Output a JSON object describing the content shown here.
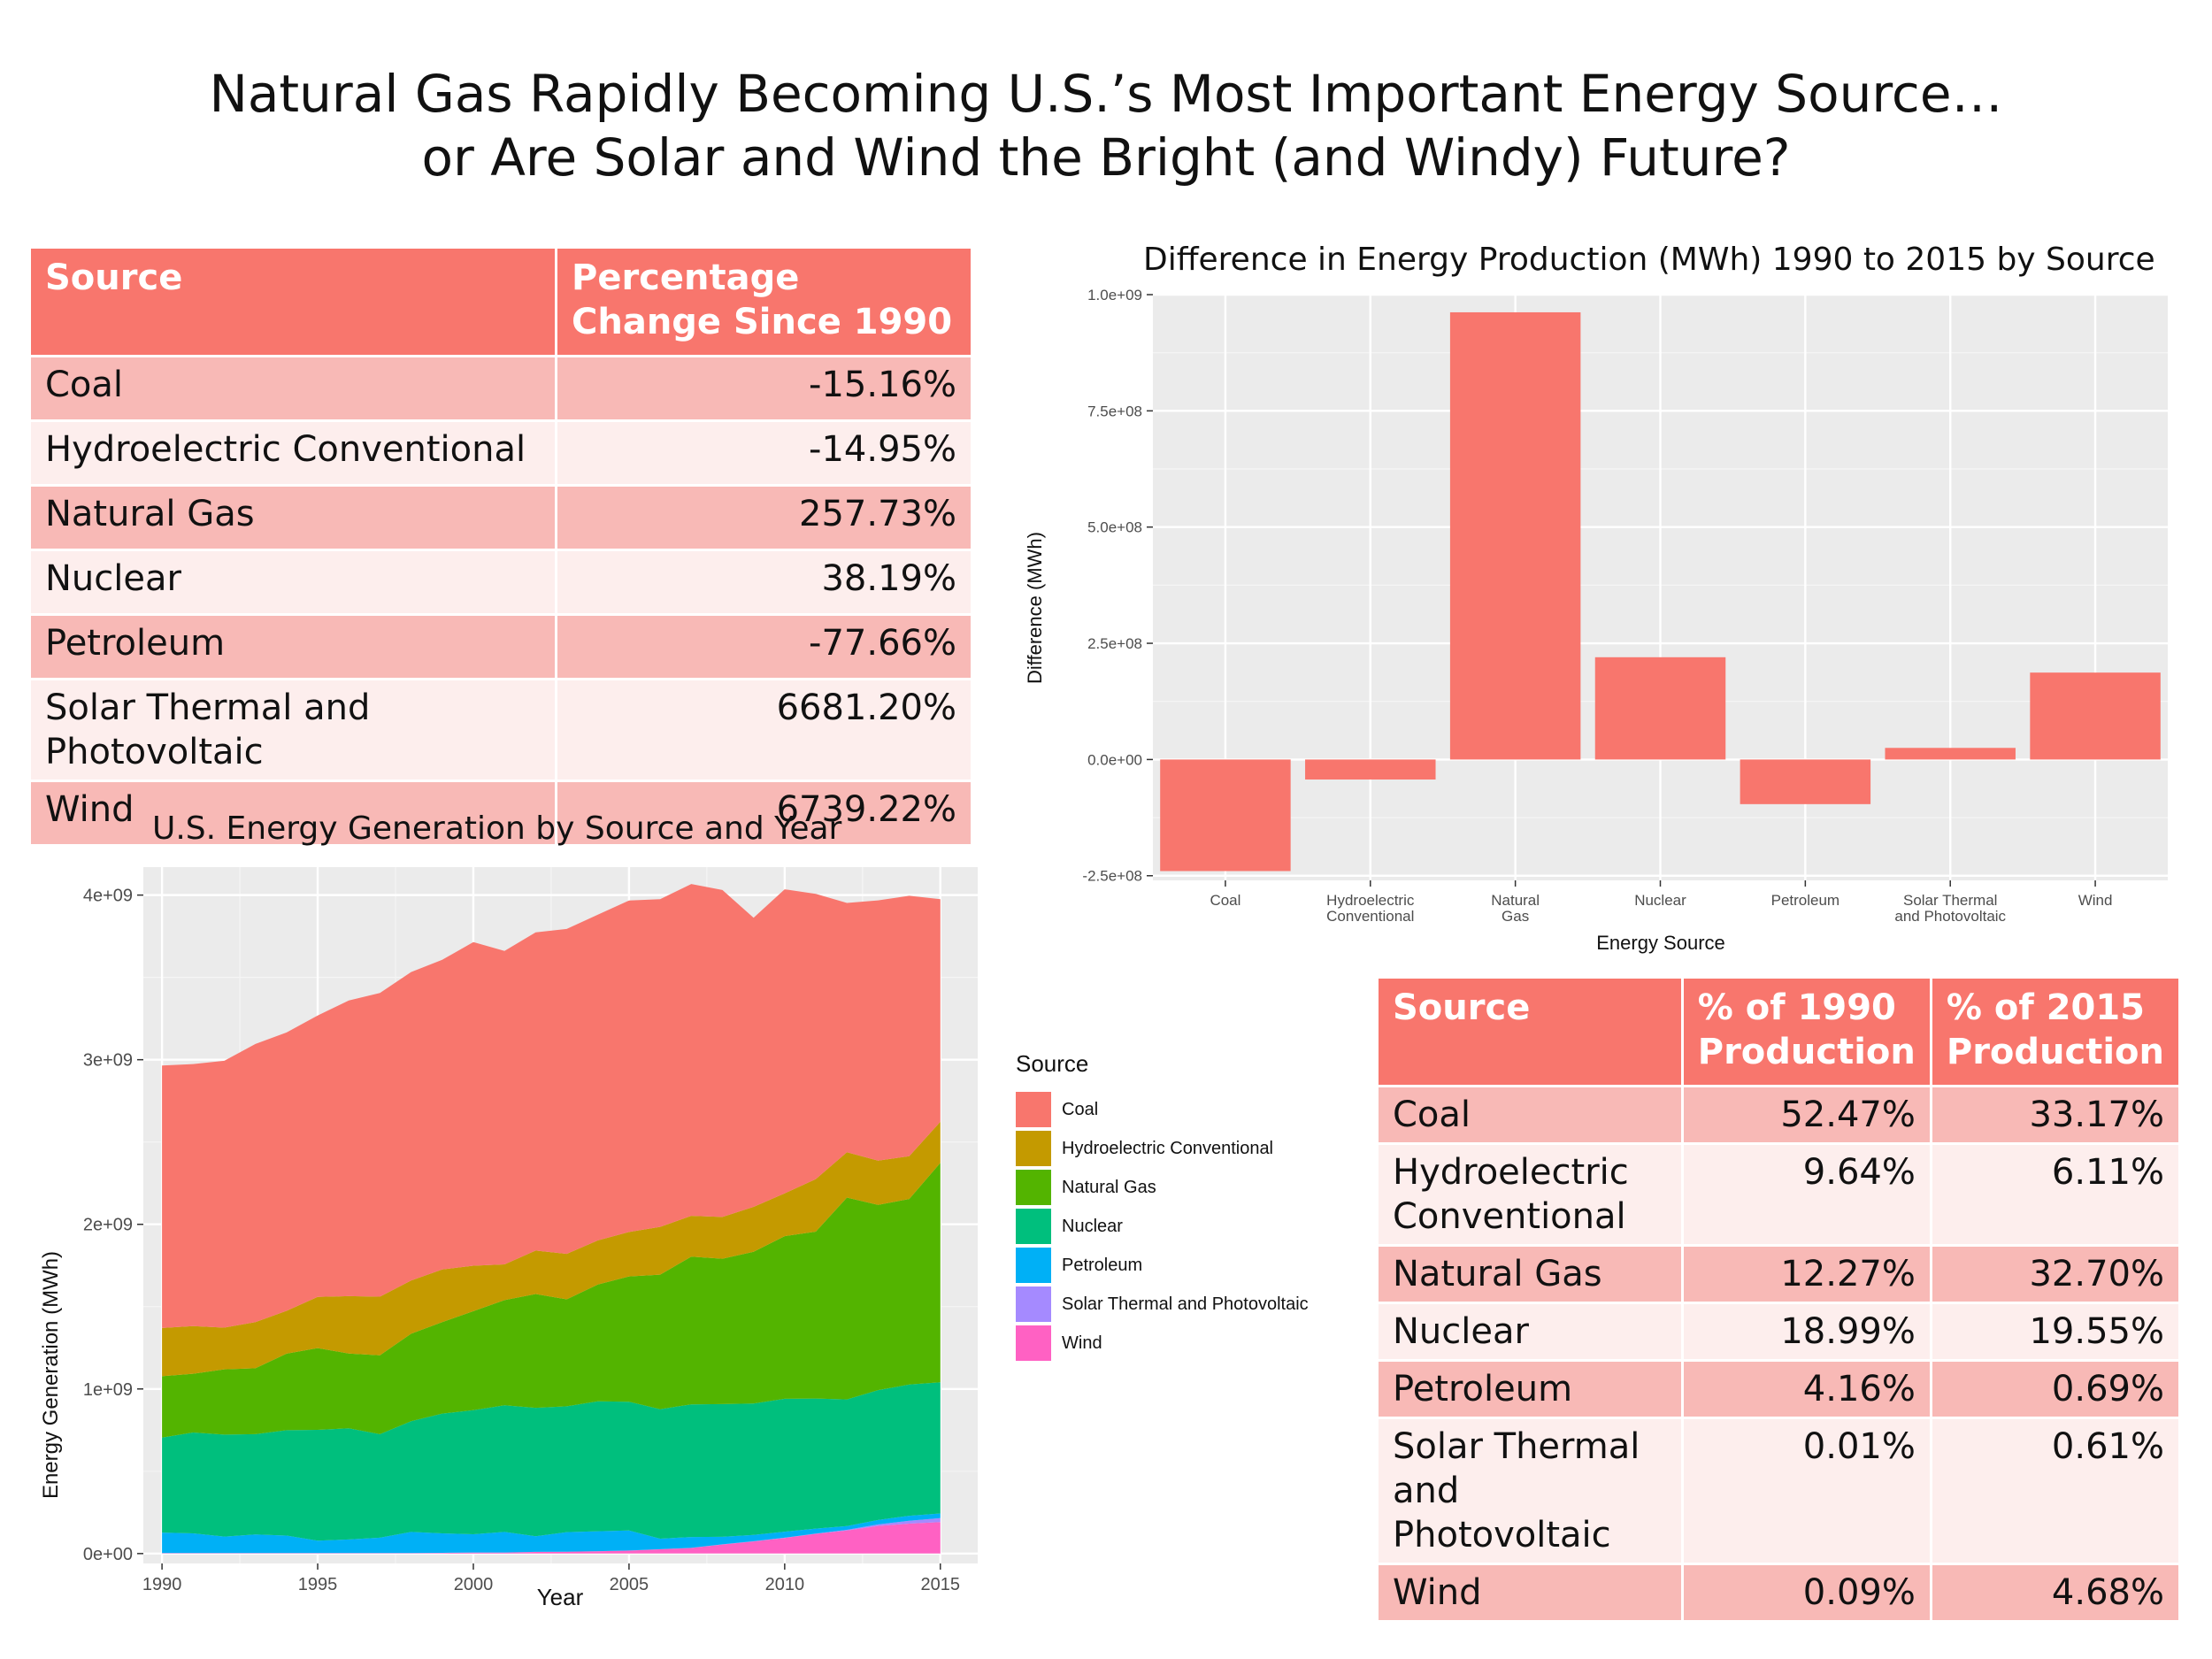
{
  "title_line1": "Natural Gas Rapidly Becoming U.S.’s Most Important Energy Source…",
  "title_line2": "or Are Solar and Wind the Bright (and Windy) Future?",
  "table1": {
    "headers": [
      "Source",
      "Percentage Change Since 1990"
    ],
    "rows": [
      {
        "source": "Coal",
        "value": "-15.16%"
      },
      {
        "source": "Hydroelectric Conventional",
        "value": "-14.95%"
      },
      {
        "source": "Natural Gas",
        "value": "257.73%"
      },
      {
        "source": "Nuclear",
        "value": "38.19%"
      },
      {
        "source": "Petroleum",
        "value": "-77.66%"
      },
      {
        "source": "Solar Thermal and Photovoltaic",
        "value": "6681.20%"
      },
      {
        "source": "Wind",
        "value": "6739.22%"
      }
    ]
  },
  "table2": {
    "headers": [
      "Source",
      "% of 1990 Production",
      "% of 2015 Production"
    ],
    "rows": [
      {
        "source": "Coal",
        "p1990": "52.47%",
        "p2015": "33.17%"
      },
      {
        "source": "Hydroelectric Conventional",
        "p1990": "9.64%",
        "p2015": "6.11%"
      },
      {
        "source": "Natural Gas",
        "p1990": "12.27%",
        "p2015": "32.70%"
      },
      {
        "source": "Nuclear",
        "p1990": "18.99%",
        "p2015": "19.55%"
      },
      {
        "source": "Petroleum",
        "p1990": "4.16%",
        "p2015": "0.69%"
      },
      {
        "source": "Solar Thermal and Photovoltaic",
        "p1990": "0.01%",
        "p2015": "0.61%"
      },
      {
        "source": "Wind",
        "p1990": "0.09%",
        "p2015": "4.68%"
      }
    ]
  },
  "colors": {
    "header": "#f8766d",
    "row_odd": "#f8b9b6",
    "row_even": "#fdeeed",
    "panel": "#ebebeb",
    "bar": "#f8766d"
  },
  "chart_data": [
    {
      "type": "bar",
      "title": "Difference in Energy Production (MWh) 1990 to 2015 by Source",
      "xlabel": "Energy Source",
      "ylabel": "Difference (MWh)",
      "categories": [
        "Coal",
        "Hydroelectric Conventional",
        "Natural Gas",
        "Nuclear",
        "Petroleum",
        "Solar Thermal and Photovoltaic",
        "Wind"
      ],
      "category_lines": [
        [
          "Coal"
        ],
        [
          "Hydroelectric",
          "Conventional"
        ],
        [
          "Natural",
          "Gas"
        ],
        [
          "Nuclear"
        ],
        [
          "Petroleum"
        ],
        [
          "Solar Thermal",
          "and Photovoltaic"
        ],
        [
          "Wind"
        ]
      ],
      "values": [
        -240000000,
        -43000000,
        962000000,
        220000000,
        -96000000,
        25000000,
        187000000
      ],
      "ylim": [
        -260000000,
        1000000000
      ],
      "yticks": [
        -250000000,
        0,
        250000000,
        500000000,
        750000000,
        1000000000
      ],
      "ytick_labels": [
        "-2.5e+08",
        "0.0e+00",
        "2.5e+08",
        "5.0e+08",
        "7.5e+08",
        "1.0e+09"
      ],
      "color": "#f8766d",
      "grid": true
    },
    {
      "type": "area",
      "stacked": true,
      "title": "U.S. Energy Generation by Source and Year",
      "xlabel": "Year",
      "ylabel": "Energy Generation (MWh)",
      "xlim": [
        1989.4,
        2016.2
      ],
      "ylim": [
        -60000000,
        4170000000
      ],
      "xticks": [
        1990,
        1995,
        2000,
        2005,
        2010,
        2015
      ],
      "yticks": [
        0,
        1000000000,
        2000000000,
        3000000000,
        4000000000
      ],
      "ytick_labels": [
        "0e+00",
        "1e+09",
        "2e+09",
        "3e+09",
        "4e+09"
      ],
      "legend_title": "Source",
      "legend_position": "right",
      "x": [
        1990,
        1991,
        1992,
        1993,
        1994,
        1995,
        1996,
        1997,
        1998,
        1999,
        2000,
        2001,
        2002,
        2003,
        2004,
        2005,
        2006,
        2007,
        2008,
        2009,
        2010,
        2011,
        2012,
        2013,
        2014,
        2015
      ],
      "series": [
        {
          "name": "Wind",
          "color": "#ff61c3",
          "values": [
            3000000,
            3000000,
            3000000,
            3000000,
            3000000,
            3000000,
            3000000,
            3000000,
            3000000,
            4000000,
            6000000,
            6000000,
            10000000,
            11000000,
            14000000,
            18000000,
            26000000,
            34000000,
            55000000,
            74000000,
            95000000,
            120000000,
            140000000,
            168000000,
            182000000,
            191000000
          ]
        },
        {
          "name": "Solar Thermal and Photovoltaic",
          "color": "#a58aff",
          "values": [
            400000,
            500000,
            500000,
            500000,
            500000,
            500000,
            500000,
            500000,
            500000,
            500000,
            500000,
            500000,
            500000,
            500000,
            600000,
            600000,
            500000,
            600000,
            900000,
            900000,
            1200000,
            1800000,
            4300000,
            9000000,
            17700000,
            24900000
          ]
        },
        {
          "name": "Petroleum",
          "color": "#00b0f6",
          "values": [
            124000000,
            119000000,
            100000000,
            112000000,
            106000000,
            75000000,
            82000000,
            93000000,
            128000000,
            118000000,
            111000000,
            125000000,
            95000000,
            119000000,
            121000000,
            122000000,
            64000000,
            66000000,
            46000000,
            38000000,
            37000000,
            30000000,
            23000000,
            27000000,
            30000000,
            28000000
          ]
        },
        {
          "name": "Nuclear",
          "color": "#00bf7d",
          "values": [
            577000000,
            613000000,
            619000000,
            610000000,
            640000000,
            673000000,
            675000000,
            629000000,
            673000000,
            728000000,
            754000000,
            769000000,
            780000000,
            764000000,
            789000000,
            782000000,
            787000000,
            806000000,
            806000000,
            799000000,
            807000000,
            790000000,
            769000000,
            789000000,
            797000000,
            797000000
          ]
        },
        {
          "name": "Natural Gas",
          "color": "#53b400",
          "values": [
            373000000,
            357000000,
            397000000,
            400000000,
            465000000,
            497000000,
            455000000,
            479000000,
            531000000,
            556000000,
            601000000,
            639000000,
            691000000,
            650000000,
            710000000,
            761000000,
            817000000,
            897000000,
            883000000,
            921000000,
            988000000,
            1014000000,
            1226000000,
            1125000000,
            1127000000,
            1333000000
          ]
        },
        {
          "name": "Hydroelectric Conventional",
          "color": "#c49a00",
          "values": [
            293000000,
            289000000,
            253000000,
            280000000,
            260000000,
            311000000,
            348000000,
            356000000,
            323000000,
            319000000,
            276000000,
            217000000,
            264000000,
            276000000,
            268000000,
            270000000,
            290000000,
            248000000,
            254000000,
            273000000,
            260000000,
            319000000,
            276000000,
            269000000,
            260000000,
            249000000
          ]
        },
        {
          "name": "Coal",
          "color": "#f8766d",
          "values": [
            1594000000,
            1592000000,
            1621000000,
            1690000000,
            1691000000,
            1709000000,
            1796000000,
            1845000000,
            1874000000,
            1881000000,
            1966000000,
            1904000000,
            1933000000,
            1974000000,
            1978000000,
            2013000000,
            1991000000,
            2016000000,
            1986000000,
            1756000000,
            1847000000,
            1733000000,
            1514000000,
            1581000000,
            1582000000,
            1352000000
          ]
        }
      ]
    }
  ]
}
